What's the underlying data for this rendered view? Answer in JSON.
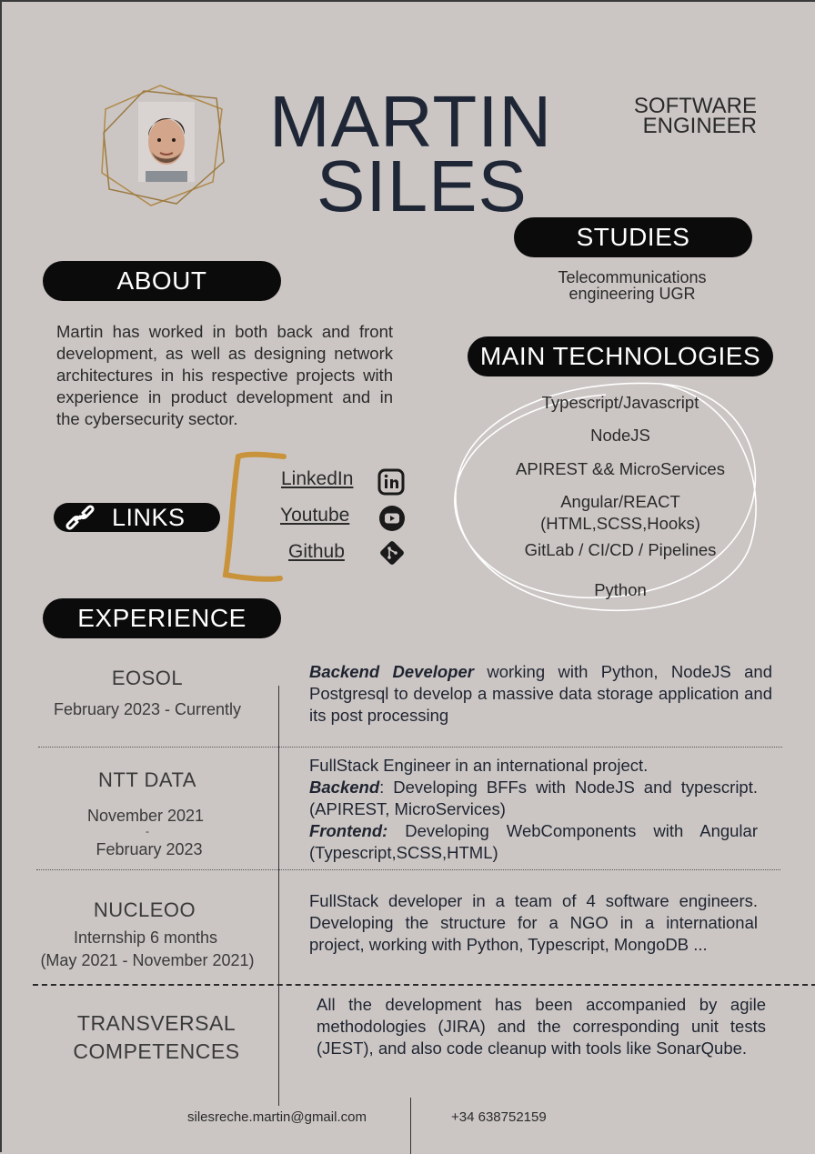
{
  "header": {
    "first_name": "MARTIN",
    "last_name": "SILES",
    "role_line1": "SOFTWARE",
    "role_line2": "ENGINEER"
  },
  "studies": {
    "title": "STUDIES",
    "line1": "Telecommunications",
    "line2": "engineering UGR"
  },
  "about": {
    "title": "ABOUT",
    "text": "Martin has worked in both back and front development, as well as designing network architectures in his respective projects with experience in product development and in the cybersecurity sector."
  },
  "technologies": {
    "title": "MAIN TECHNOLOGIES",
    "items": [
      "Typescript/Javascript",
      "NodeJS",
      "APIREST && MicroServices",
      "Angular/REACT",
      "(HTML,SCSS,Hooks)",
      "GitLab / CI/CD / Pipelines",
      "Python"
    ]
  },
  "links": {
    "title": "LINKS",
    "items": [
      {
        "label": "LinkedIn",
        "icon": "linkedin-icon"
      },
      {
        "label": "Youtube",
        "icon": "youtube-icon"
      },
      {
        "label": "Github",
        "icon": "git-icon"
      }
    ]
  },
  "experience": {
    "title": "EXPERIENCE",
    "eosol": {
      "company": "EOSOL",
      "period": "February 2023 - Currently",
      "role_em": "Backend Developer",
      "text": " working with Python, NodeJS and Postgresql to develop a massive data storage application and its post processing"
    },
    "ntt": {
      "company": "NTT DATA",
      "period_start": "November 2021",
      "period_sep": "-",
      "period_end": "February 2023",
      "line1": "FullStack Engineer in an international project.",
      "backend_em": "Backend",
      "backend_text": ": Developing BFFs with NodeJS and typescript. (APIREST, MicroServices)",
      "frontend_em": "Frontend:",
      "frontend_text": " Developing WebComponents with Angular (Typescript,SCSS,HTML)"
    },
    "nucleoo": {
      "company": "NUCLEOO",
      "period_line1": "Internship 6 months",
      "period_line2": "(May 2021 - November 2021)",
      "text": "FullStack developer in a team of 4 software engineers. Developing the structure for a NGO in a international project, working with Python, Typescript, MongoDB ..."
    },
    "transversal": {
      "line1": "TRANSVERSAL",
      "line2": "COMPETENCES",
      "text": "All the development has been accompanied by agile methodologies (JIRA) and the corresponding unit tests (JEST), and also code cleanup with tools like SonarQube."
    }
  },
  "footer": {
    "email": "silesreche.martin@gmail.com",
    "phone": "+34 638752159"
  },
  "colors": {
    "background": "#cbc6c4",
    "pill": "#0b0b0c",
    "gold": "#c8933a",
    "name": "#1f2736"
  }
}
